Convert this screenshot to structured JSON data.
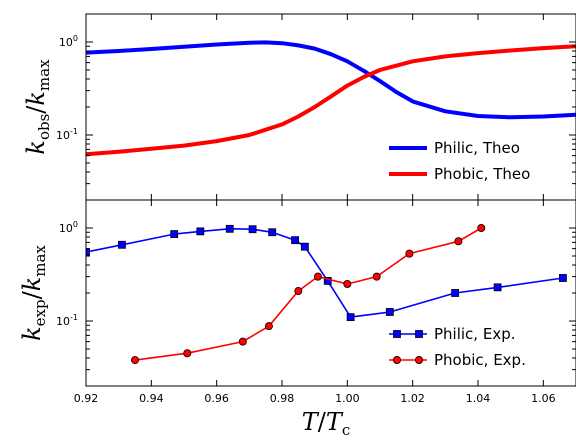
{
  "chart_data": [
    {
      "type": "line",
      "ylabel": "k_obs/k_max",
      "ylabel_parts": {
        "base": "k",
        "sub": "obs",
        "slash": "/",
        "base2": "k",
        "sub2": "max"
      },
      "yscale": "log",
      "ylim": [
        0.02,
        2.0
      ],
      "xlim": [
        0.92,
        1.07
      ],
      "y_ticks": [
        {
          "value": 1.0,
          "base": "10",
          "exp": "0"
        },
        {
          "value": 0.1,
          "base": "10",
          "exp": "-1"
        }
      ],
      "legend_position": "bottom-right",
      "series": [
        {
          "name": "Philic, Theo",
          "color": "#0000ff",
          "x": [
            0.92,
            0.93,
            0.94,
            0.95,
            0.96,
            0.97,
            0.975,
            0.98,
            0.985,
            0.99,
            0.995,
            1.0,
            1.005,
            1.01,
            1.015,
            1.02,
            1.03,
            1.04,
            1.05,
            1.06,
            1.07
          ],
          "y": [
            0.77,
            0.8,
            0.84,
            0.89,
            0.94,
            0.98,
            0.99,
            0.97,
            0.92,
            0.85,
            0.74,
            0.62,
            0.49,
            0.38,
            0.29,
            0.23,
            0.18,
            0.16,
            0.155,
            0.158,
            0.165
          ]
        },
        {
          "name": "Phobic, Theo",
          "color": "#ff0000",
          "x": [
            0.92,
            0.93,
            0.94,
            0.95,
            0.96,
            0.97,
            0.98,
            0.985,
            0.99,
            0.995,
            1.0,
            1.005,
            1.01,
            1.02,
            1.03,
            1.04,
            1.05,
            1.06,
            1.07
          ],
          "y": [
            0.062,
            0.066,
            0.071,
            0.077,
            0.086,
            0.1,
            0.13,
            0.158,
            0.2,
            0.26,
            0.34,
            0.42,
            0.5,
            0.62,
            0.7,
            0.76,
            0.81,
            0.86,
            0.9
          ]
        }
      ]
    },
    {
      "type": "line",
      "xlabel": "T/T_c",
      "xlabel_parts": {
        "base": "T",
        "slash": "/",
        "base2": "T",
        "sub2": "c"
      },
      "ylabel": "k_exp/k_max",
      "ylabel_parts": {
        "base": "k",
        "sub": "exp",
        "slash": "/",
        "base2": "k",
        "sub2": "max"
      },
      "yscale": "log",
      "ylim": [
        0.02,
        2.0
      ],
      "xlim": [
        0.92,
        1.07
      ],
      "x_ticks": [
        "0.92",
        "0.94",
        "0.96",
        "0.98",
        "1.00",
        "1.02",
        "1.04",
        "1.06"
      ],
      "y_ticks": [
        {
          "value": 1.0,
          "base": "10",
          "exp": "0"
        },
        {
          "value": 0.1,
          "base": "10",
          "exp": "-1"
        }
      ],
      "legend_position": "bottom-right",
      "series": [
        {
          "name": "Philic, Exp.",
          "color": "#0000ff",
          "marker": "square",
          "x": [
            0.92,
            0.931,
            0.947,
            0.955,
            0.964,
            0.971,
            0.977,
            0.984,
            0.987,
            0.994,
            1.001,
            1.013,
            1.033,
            1.046,
            1.066
          ],
          "y": [
            0.55,
            0.66,
            0.86,
            0.92,
            0.98,
            0.97,
            0.9,
            0.74,
            0.63,
            0.27,
            0.11,
            0.125,
            0.2,
            0.23,
            0.29
          ]
        },
        {
          "name": "Phobic, Exp.",
          "color": "#ff0000",
          "marker": "circle",
          "x": [
            0.935,
            0.951,
            0.968,
            0.976,
            0.985,
            0.991,
            1.0,
            1.009,
            1.019,
            1.034,
            1.041
          ],
          "y": [
            0.038,
            0.045,
            0.06,
            0.088,
            0.21,
            0.3,
            0.25,
            0.3,
            0.53,
            0.72,
            1.0
          ]
        }
      ]
    }
  ]
}
